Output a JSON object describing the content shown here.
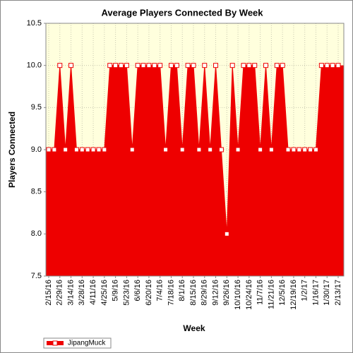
{
  "chart_data": {
    "type": "area",
    "title": "Average Players Connected By Week",
    "x_label": "Week",
    "y_label": "Players Connected",
    "categories": [
      "2/15/16",
      null,
      "2/29/16",
      null,
      "3/14/16",
      null,
      "3/28/16",
      null,
      "4/11/16",
      null,
      "4/25/16",
      null,
      "5/9/16",
      null,
      "5/23/16",
      null,
      "6/6/16",
      null,
      "6/20/16",
      null,
      "7/4/16",
      null,
      "7/18/16",
      null,
      "8/1/16",
      null,
      "8/15/16",
      null,
      "8/29/16",
      null,
      "9/12/16",
      null,
      "9/26/16",
      null,
      "10/10/16",
      null,
      "10/24/16",
      null,
      "11/7/16",
      null,
      "11/21/16",
      null,
      "12/5/16",
      null,
      "12/19/16",
      null,
      "1/2/17",
      null,
      "1/16/17",
      null,
      "1/30/17",
      null,
      "2/13/17"
    ],
    "series": [
      {
        "name": "JipangMuck",
        "color": "#ee0000",
        "values": [
          9,
          9,
          10,
          9,
          10,
          9,
          9,
          9,
          9,
          9,
          9,
          10,
          10,
          10,
          10,
          9,
          10,
          10,
          10,
          10,
          10,
          9,
          10,
          10,
          9,
          10,
          10,
          9,
          10,
          9,
          10,
          9,
          8,
          10,
          9,
          10,
          10,
          10,
          9,
          10,
          9,
          10,
          10,
          9,
          9,
          9,
          9,
          9,
          9,
          10,
          10,
          10,
          10
        ]
      }
    ],
    "ylim": [
      7.5,
      10.5
    ],
    "yticks": [
      {
        "value": 7.5,
        "label": "7.5"
      },
      {
        "value": 8,
        "label": "8.0"
      },
      8.5,
      {
        "value": 9,
        "label": "9.0"
      },
      9.5,
      {
        "value": 10,
        "label": "10.0"
      },
      10.5
    ],
    "grid": true,
    "legend": "bottom-left"
  }
}
